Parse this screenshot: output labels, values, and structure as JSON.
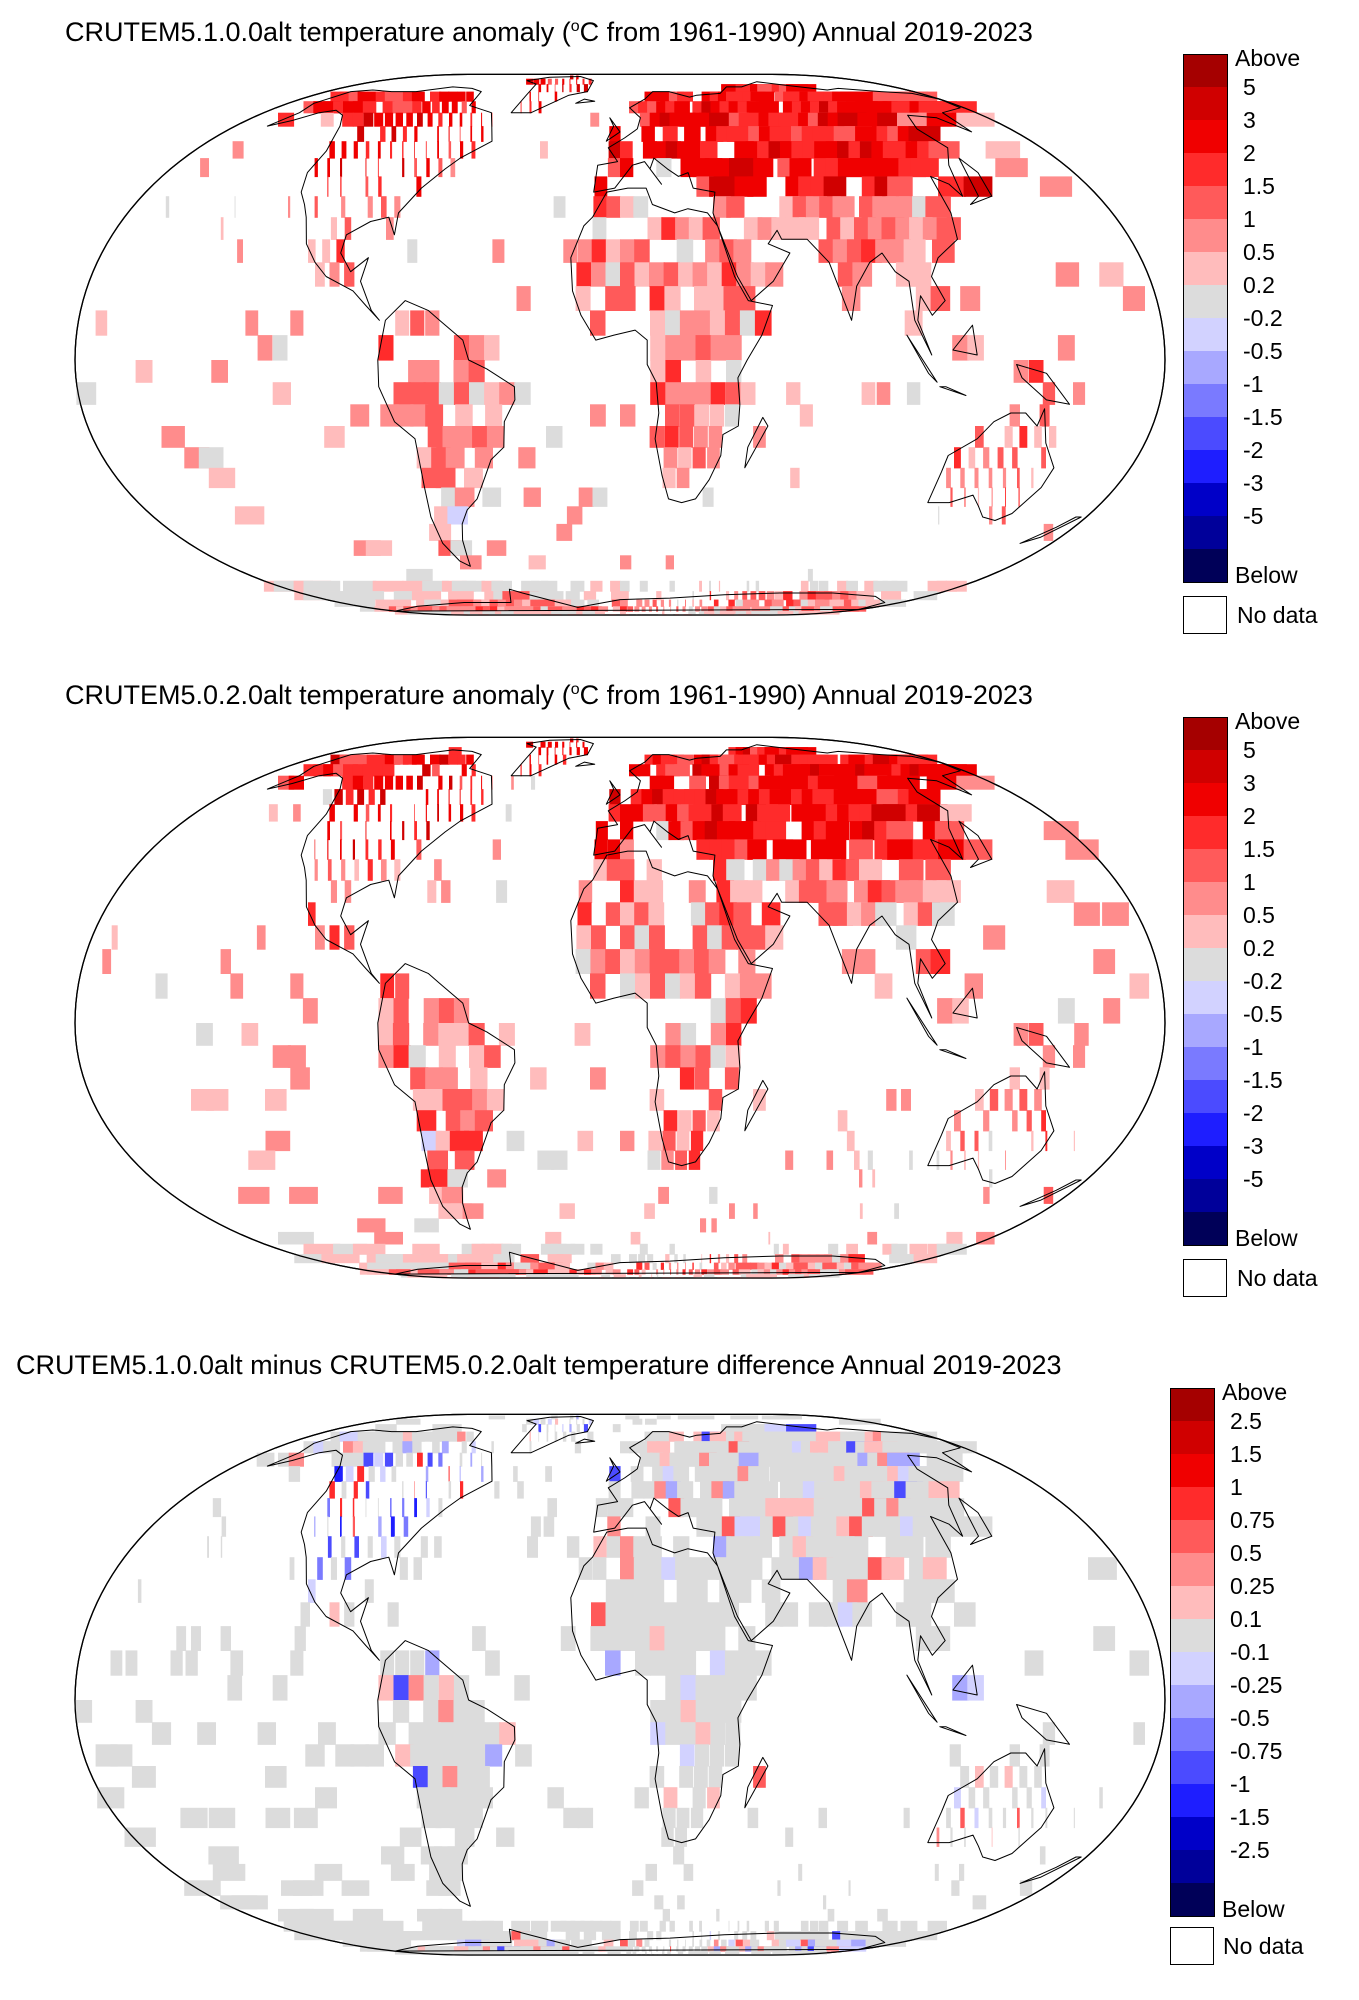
{
  "panels": [
    {
      "id": "crutem510",
      "title_prefix": "CRUTEM5.1.0.0alt temperature anomaly (",
      "title_sup": "o",
      "title_suffix": "C from 1961-1990) Annual 2019-2023",
      "legend_labels": [
        "Above",
        "5",
        "3",
        "2",
        "1.5",
        "1",
        "0.5",
        "0.2",
        "-0.2",
        "-0.5",
        "-1",
        "-1.5",
        "-2",
        "-3",
        "-5",
        "Below"
      ],
      "legend_colors": [
        "#a50000",
        "#d00000",
        "#f00000",
        "#ff2b2b",
        "#ff5a5a",
        "#ff8c8c",
        "#ffbcbc",
        "#dcdcdc",
        "#d2d2ff",
        "#a8a8ff",
        "#7a7aff",
        "#4b4bff",
        "#1e1eff",
        "#0000c8",
        "#00009a",
        "#000058"
      ],
      "no_data_label": "No data"
    },
    {
      "id": "crutem502",
      "title_prefix": "CRUTEM5.0.2.0alt temperature anomaly (",
      "title_sup": "o",
      "title_suffix": "C from 1961-1990) Annual 2019-2023",
      "legend_labels": [
        "Above",
        "5",
        "3",
        "2",
        "1.5",
        "1",
        "0.5",
        "0.2",
        "-0.2",
        "-0.5",
        "-1",
        "-1.5",
        "-2",
        "-3",
        "-5",
        "Below"
      ],
      "legend_colors": [
        "#a50000",
        "#d00000",
        "#f00000",
        "#ff2b2b",
        "#ff5a5a",
        "#ff8c8c",
        "#ffbcbc",
        "#dcdcdc",
        "#d2d2ff",
        "#a8a8ff",
        "#7a7aff",
        "#4b4bff",
        "#1e1eff",
        "#0000c8",
        "#00009a",
        "#000058"
      ],
      "no_data_label": "No data"
    },
    {
      "id": "difference",
      "title_prefix": "CRUTEM5.1.0.0alt minus CRUTEM5.0.2.0alt temperature difference Annual 2019-2023",
      "title_sup": "",
      "title_suffix": "",
      "legend_labels": [
        "Above",
        "2.5",
        "1.5",
        "1",
        "0.75",
        "0.5",
        "0.25",
        "0.1",
        "-0.1",
        "-0.25",
        "-0.5",
        "-0.75",
        "-1",
        "-1.5",
        "-2.5",
        "Below"
      ],
      "legend_colors": [
        "#a50000",
        "#d00000",
        "#f00000",
        "#ff2b2b",
        "#ff5a5a",
        "#ff8c8c",
        "#ffbcbc",
        "#dcdcdc",
        "#d2d2ff",
        "#a8a8ff",
        "#7a7aff",
        "#4b4bff",
        "#1e1eff",
        "#0000c8",
        "#00009a",
        "#000058"
      ],
      "no_data_label": "No data"
    }
  ]
}
